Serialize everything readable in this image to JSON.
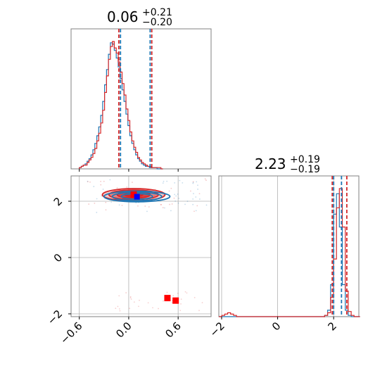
{
  "chart_data": {
    "type": "corner",
    "colors": {
      "red": "#d62728",
      "blue": "#1f77b4",
      "marker_red": "#ff0000",
      "marker_blue": "#0000ff",
      "grid": "#b0b0b0"
    },
    "params": [
      {
        "title_main": "0.06",
        "title_plus": "+0.21",
        "title_minus": "−0.20",
        "xlim": [
          -0.7,
          1.0
        ],
        "ticks": [
          -0.6,
          0.0,
          0.6
        ],
        "tick_labels": [
          "−0.6",
          "0.0",
          "0.6"
        ],
        "quantiles_red": [
          -0.12,
          0.28
        ],
        "quantiles_blue": [
          -0.1,
          0.26
        ],
        "hist_red": {
          "x0": -0.6,
          "dx": 0.0236,
          "values": [
            1,
            2,
            3,
            3,
            5,
            7,
            9,
            12,
            16,
            22,
            28,
            36,
            46,
            60,
            73,
            86,
            96,
            100,
            95,
            91,
            84,
            76,
            67,
            58,
            47,
            38,
            29,
            22,
            17,
            13,
            9,
            7,
            5,
            4,
            3,
            2,
            2,
            1,
            1,
            1,
            1,
            1,
            0
          ]
        },
        "hist_blue": {
          "x0": -0.6,
          "dx": 0.0236,
          "values": [
            1,
            2,
            3,
            4,
            6,
            8,
            11,
            15,
            20,
            26,
            33,
            42,
            53,
            66,
            78,
            90,
            99,
            98,
            93,
            87,
            80,
            71,
            62,
            53,
            43,
            34,
            26,
            20,
            15,
            11,
            8,
            6,
            4,
            3,
            2,
            2,
            1,
            1,
            1,
            1,
            0,
            0,
            0
          ]
        }
      },
      {
        "title_main": "2.23",
        "title_plus": "+0.19",
        "title_minus": "−0.19",
        "xlim": [
          -2.1,
          2.9
        ],
        "ticks": [
          -2,
          0,
          2
        ],
        "tick_labels": [
          "−2",
          "0",
          "2"
        ],
        "quantiles_red": [
          1.95,
          2.47
        ],
        "quantiles_blue": [
          2.0,
          2.28
        ],
        "hist_red": {
          "x0": -2.1,
          "dx": 0.105,
          "values": [
            0,
            1,
            2,
            3,
            2,
            1,
            0,
            0,
            0,
            0,
            0,
            0,
            0,
            0,
            0,
            0,
            0,
            0,
            0,
            0,
            0,
            0,
            0,
            0,
            0,
            0,
            0,
            0,
            0,
            0,
            0,
            0,
            0,
            0,
            0,
            0,
            1,
            3,
            15,
            45,
            85,
            100,
            70,
            20,
            4,
            1,
            0,
            0
          ]
        },
        "hist_blue": {
          "x0": -2.1,
          "dx": 0.105,
          "values": [
            0,
            0,
            0,
            0,
            0,
            0,
            0,
            0,
            0,
            0,
            0,
            0,
            0,
            0,
            0,
            0,
            0,
            0,
            0,
            0,
            0,
            0,
            0,
            0,
            0,
            0,
            0,
            0,
            0,
            0,
            0,
            0,
            0,
            0,
            0,
            0,
            1,
            5,
            25,
            80,
            96,
            70,
            25,
            5,
            1,
            0,
            0,
            0
          ]
        }
      }
    ],
    "joint": {
      "xlim": [
        -0.7,
        1.0
      ],
      "ylim": [
        -2.1,
        2.9
      ],
      "red_center": [
        0.06,
        2.23
      ],
      "red_contours": [
        [
          0.38,
          0.22
        ],
        [
          0.3,
          0.17
        ],
        [
          0.2,
          0.12
        ],
        [
          0.11,
          0.07
        ]
      ],
      "blue_center": [
        0.1,
        2.17
      ],
      "blue_contours": [
        [
          0.4,
          0.19
        ],
        [
          0.3,
          0.15
        ],
        [
          0.19,
          0.1
        ]
      ],
      "red_markers": [
        [
          0.06,
          2.24
        ],
        [
          0.47,
          -1.44
        ],
        [
          0.57,
          -1.53
        ]
      ],
      "blue_markers": [
        [
          0.1,
          2.16
        ]
      ],
      "scatter_region": {
        "x": [
          -0.5,
          0.95
        ],
        "y_low": [
          -1.9,
          -1.2
        ],
        "y_high": [
          1.6,
          2.8
        ]
      }
    }
  }
}
